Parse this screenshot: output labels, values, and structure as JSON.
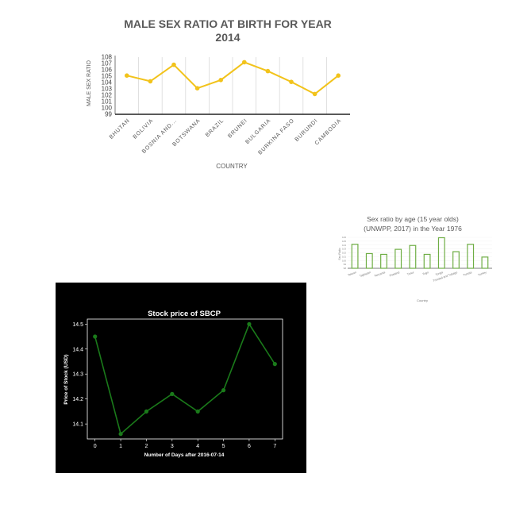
{
  "charts": {
    "chart1": {
      "title_line1": "MALE SEX RATIO AT BIRTH FOR YEAR",
      "title_line2": "2014",
      "xlabel": "COUNTRY",
      "ylabel": "MALE SEX RATIO",
      "color": "#f2c31b"
    },
    "chart2": {
      "title_line1": "Sex ratio by age (15 year olds)",
      "title_line2": "(UNWPP, 2017) in the Year 1976",
      "xlabel": "Country",
      "ylabel": "Sex Ratio",
      "color": "#6fae45"
    },
    "chart3": {
      "title": "Stock price of SBCP",
      "xlabel": "Number of Days after 2016-07-14",
      "ylabel": "Price of Stock (USD)",
      "color": "#1a7a1a"
    }
  },
  "chart_data": [
    {
      "type": "line",
      "title": "MALE SEX RATIO AT BIRTH FOR YEAR 2014",
      "xlabel": "COUNTRY",
      "ylabel": "MALE SEX RATIO",
      "categories": [
        "BHUTAN",
        "BOLIVIA",
        "BOSNIA AND...",
        "BOTSWANA",
        "BRAZIL",
        "BRUNEI",
        "BULGARIA",
        "BURKINA FASO",
        "BURUNDI",
        "CAMBODIA"
      ],
      "values": [
        105.1,
        104.2,
        106.8,
        103.1,
        104.4,
        107.2,
        105.8,
        104.1,
        102.2,
        105.1
      ],
      "ylim": [
        99,
        108
      ],
      "yticks": [
        99,
        100,
        101,
        102,
        103,
        104,
        105,
        106,
        107,
        108
      ],
      "grid": "vertical"
    },
    {
      "type": "bar",
      "title": "Sex ratio by age (15 year olds) (UNWPP, 2017) in the Year 1976",
      "xlabel": "Country",
      "ylabel": "Sex Ratio",
      "categories": [
        "Taiwan",
        "Tajikistan",
        "Tanzania",
        "Thailand",
        "Timor",
        "Togo",
        "Tonga",
        "Trinidad and Tobago",
        "Tunisia",
        "Turkey"
      ],
      "values": [
        104.2,
        101.8,
        101.6,
        102.9,
        103.9,
        101.6,
        105.9,
        102.3,
        104.2,
        100.9
      ],
      "ylim": [
        98,
        106
      ],
      "yticks": [
        98,
        99,
        100,
        101,
        102,
        103,
        104,
        105,
        106
      ]
    },
    {
      "type": "line",
      "title": "Stock price of SBCP",
      "xlabel": "Number of Days after 2016-07-14",
      "ylabel": "Price of Stock (USD)",
      "x": [
        0,
        1,
        2,
        3,
        4,
        5,
        6,
        7
      ],
      "values": [
        14.45,
        14.06,
        14.15,
        14.22,
        14.15,
        14.235,
        14.5,
        14.34
      ],
      "xlim": [
        -0.3,
        7.3
      ],
      "ylim": [
        14.04,
        14.52
      ],
      "xticks": [
        0,
        1,
        2,
        3,
        4,
        5,
        6,
        7
      ],
      "yticks": [
        14.1,
        14.2,
        14.3,
        14.4,
        14.5
      ],
      "ytick_labels": [
        "14.1",
        "14.2",
        "14.3",
        "14.4",
        "14.5"
      ]
    }
  ]
}
